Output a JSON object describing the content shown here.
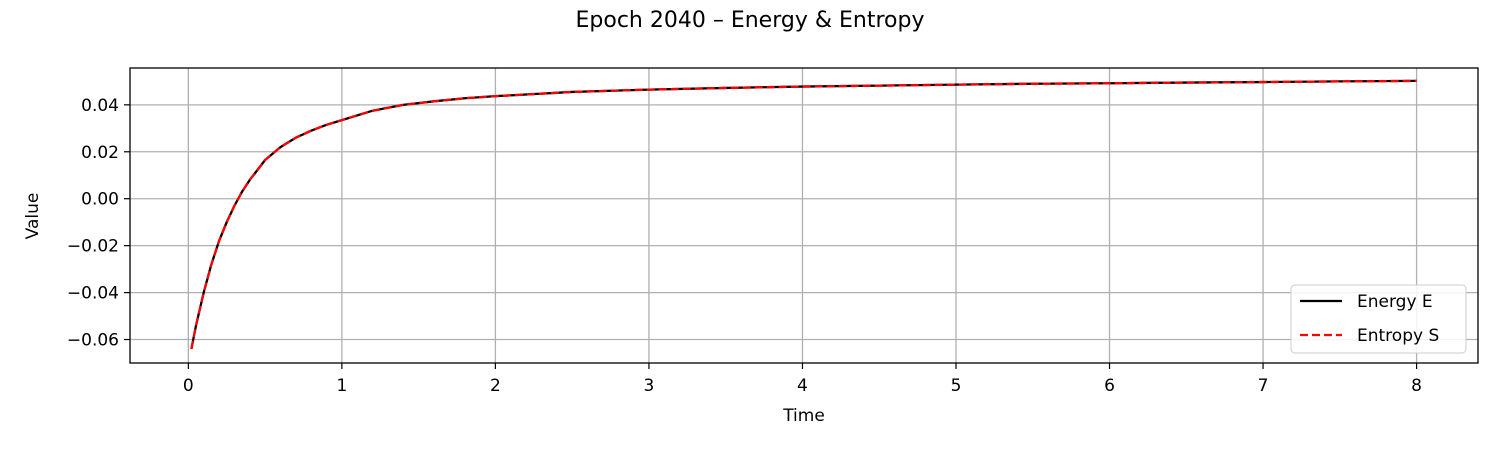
{
  "chart_data": {
    "type": "line",
    "title": "Epoch 2040 – Energy & Entropy",
    "xlabel": "Time",
    "ylabel": "Value",
    "xlim": [
      -0.38,
      8.4
    ],
    "ylim": [
      -0.07,
      0.0557
    ],
    "xticks": [
      0,
      1,
      2,
      3,
      4,
      5,
      6,
      7,
      8
    ],
    "xtick_labels": [
      "0",
      "1",
      "2",
      "3",
      "4",
      "5",
      "6",
      "7",
      "8"
    ],
    "yticks": [
      -0.06,
      -0.04,
      -0.02,
      0.0,
      0.02,
      0.04
    ],
    "ytick_labels": [
      "−0.06",
      "−0.04",
      "−0.02",
      "0.00",
      "0.02",
      "0.04"
    ],
    "grid": true,
    "legend_position": "lower-right",
    "series": [
      {
        "name": "Energy E",
        "color": "#000000",
        "style": "solid",
        "x": [
          0.02,
          0.05,
          0.1,
          0.15,
          0.2,
          0.25,
          0.3,
          0.35,
          0.4,
          0.5,
          0.6,
          0.7,
          0.8,
          0.9,
          1.0,
          1.2,
          1.4,
          1.6,
          1.8,
          2.0,
          2.5,
          3.0,
          3.5,
          4.0,
          4.5,
          5.0,
          5.5,
          6.0,
          6.5,
          7.0,
          7.5,
          8.0
        ],
        "y": [
          -0.064,
          -0.054,
          -0.04,
          -0.028,
          -0.018,
          -0.01,
          -0.003,
          0.003,
          0.008,
          0.0165,
          0.022,
          0.026,
          0.029,
          0.0315,
          0.0335,
          0.0375,
          0.04,
          0.0415,
          0.0428,
          0.0437,
          0.0455,
          0.0465,
          0.0472,
          0.0478,
          0.0482,
          0.0486,
          0.049,
          0.0492,
          0.0495,
          0.0497,
          0.05,
          0.0502
        ]
      },
      {
        "name": "Entropy S",
        "color": "#ff0000",
        "style": "dashed",
        "x": [
          0.02,
          0.05,
          0.1,
          0.15,
          0.2,
          0.25,
          0.3,
          0.35,
          0.4,
          0.5,
          0.6,
          0.7,
          0.8,
          0.9,
          1.0,
          1.2,
          1.4,
          1.6,
          1.8,
          2.0,
          2.5,
          3.0,
          3.5,
          4.0,
          4.5,
          5.0,
          5.5,
          6.0,
          6.5,
          7.0,
          7.5,
          8.0
        ],
        "y": [
          -0.064,
          -0.054,
          -0.04,
          -0.028,
          -0.018,
          -0.01,
          -0.003,
          0.003,
          0.008,
          0.0165,
          0.022,
          0.026,
          0.029,
          0.0315,
          0.0335,
          0.0375,
          0.04,
          0.0415,
          0.0428,
          0.0437,
          0.0455,
          0.0465,
          0.0472,
          0.0478,
          0.0482,
          0.0486,
          0.049,
          0.0492,
          0.0495,
          0.0497,
          0.05,
          0.0502
        ]
      }
    ]
  }
}
